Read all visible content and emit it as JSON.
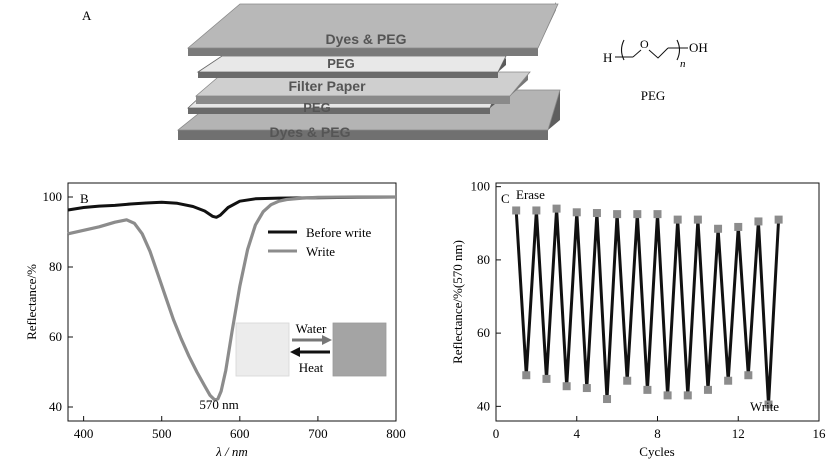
{
  "panel_a": {
    "label": "A",
    "layers": [
      "Dyes & PEG",
      "PEG",
      "Filter Paper",
      "PEG",
      "Dyes & PEG"
    ],
    "peg_formula": {
      "h": "H",
      "o": "O",
      "oh": "OH",
      "n": "n",
      "name": "PEG"
    }
  },
  "chart_data": [
    {
      "type": "line",
      "panel_label": "B",
      "xlabel": "λ / nm",
      "ylabel": "Reflectance/%",
      "xlim": [
        380,
        800
      ],
      "ylim": [
        36,
        104
      ],
      "x_ticks": [
        400,
        500,
        600,
        700,
        800
      ],
      "y_ticks": [
        40,
        60,
        80,
        100
      ],
      "legend_position": "upper-right",
      "series": [
        {
          "name": "Before write",
          "color": "#111111",
          "x": [
            380,
            400,
            420,
            440,
            460,
            480,
            500,
            520,
            540,
            555,
            565,
            570,
            575,
            585,
            600,
            620,
            650,
            700,
            750,
            800
          ],
          "y": [
            96.3,
            97.0,
            97.4,
            97.6,
            98.0,
            98.3,
            98.5,
            98.2,
            97.3,
            96.0,
            94.5,
            94.2,
            94.8,
            97.0,
            98.8,
            99.5,
            99.7,
            99.8,
            99.9,
            100.0
          ]
        },
        {
          "name": "Write",
          "color": "#8c8c8c",
          "x": [
            380,
            400,
            420,
            440,
            455,
            465,
            475,
            485,
            495,
            505,
            515,
            525,
            535,
            545,
            555,
            562,
            568,
            572,
            576,
            582,
            590,
            600,
            610,
            620,
            630,
            640,
            650,
            660,
            680,
            700,
            750,
            800
          ],
          "y": [
            89.5,
            90.5,
            91.5,
            92.8,
            93.5,
            92.5,
            89.5,
            84.5,
            78.0,
            71.5,
            65.0,
            59.5,
            54.5,
            50.0,
            46.0,
            43.3,
            42.0,
            42.3,
            44.5,
            50.5,
            61.5,
            74.5,
            85.0,
            92.0,
            95.8,
            97.8,
            98.8,
            99.3,
            99.7,
            99.9,
            100.0,
            100.0
          ]
        }
      ],
      "annotations": {
        "peak_label": "570 nm",
        "arrow_top": "Water",
        "arrow_bottom": "Heat"
      }
    },
    {
      "type": "line",
      "panel_label": "C",
      "xlabel": "Cycles",
      "ylabel": "Reflectance/%(570 nm)",
      "xlim": [
        0,
        16
      ],
      "ylim": [
        36,
        101
      ],
      "x_ticks": [
        0,
        4,
        8,
        12,
        16
      ],
      "y_ticks": [
        40,
        60,
        80,
        100
      ],
      "series": [
        {
          "name": "",
          "line_color": "#111111",
          "marker_color": "#8c8c8c",
          "x": [
            1.0,
            1.5,
            2.0,
            2.5,
            3.0,
            3.5,
            4.0,
            4.5,
            5.0,
            5.5,
            6.0,
            6.5,
            7.0,
            7.5,
            8.0,
            8.5,
            9.0,
            9.5,
            10.0,
            10.5,
            11.0,
            11.5,
            12.0,
            12.5,
            13.0,
            13.5,
            14.0
          ],
          "y": [
            93.5,
            48.5,
            93.5,
            47.5,
            94.0,
            45.5,
            93.0,
            45.0,
            92.8,
            42.0,
            92.5,
            47.0,
            92.5,
            44.5,
            92.5,
            43.0,
            91.0,
            43.0,
            91.0,
            44.5,
            88.5,
            47.0,
            89.0,
            48.5,
            90.5,
            40.5,
            91.0
          ]
        }
      ],
      "annotations": {
        "top_label": "Erase",
        "bottom_label": "Write"
      }
    }
  ]
}
